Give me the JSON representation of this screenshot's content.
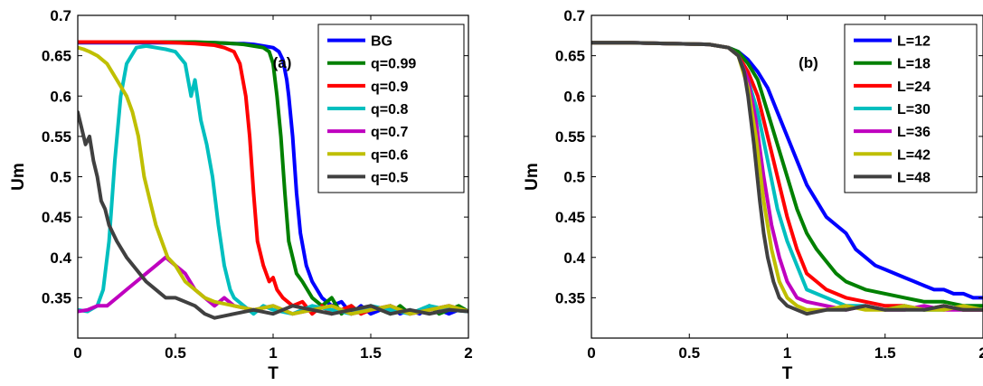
{
  "chart_data": [
    {
      "type": "line",
      "panel_label": "(a)",
      "xlabel": "T",
      "ylabel": "Um",
      "xlim": [
        0,
        2
      ],
      "ylim": [
        0.3,
        0.7
      ],
      "xticks": [
        "0",
        "0.5",
        "1",
        "1.5",
        "2"
      ],
      "yticks": [
        "0.35",
        "0.4",
        "0.45",
        "0.5",
        "0.55",
        "0.6",
        "0.65",
        "0.7"
      ],
      "legend_position": "top-right",
      "grid": false,
      "series": [
        {
          "name": "BG",
          "color": "#0000ff",
          "x": [
            0.0,
            0.1,
            0.2,
            0.3,
            0.4,
            0.5,
            0.6,
            0.7,
            0.8,
            0.85,
            0.9,
            0.95,
            1.0,
            1.03,
            1.05,
            1.07,
            1.08,
            1.1,
            1.12,
            1.14,
            1.17,
            1.2,
            1.25,
            1.3,
            1.35,
            1.4,
            1.45,
            1.5,
            1.55,
            1.6,
            1.65,
            1.7,
            1.75,
            1.8,
            1.85,
            1.9,
            1.95,
            2.0
          ],
          "y": [
            0.666,
            0.666,
            0.666,
            0.666,
            0.666,
            0.666,
            0.666,
            0.666,
            0.665,
            0.665,
            0.664,
            0.662,
            0.66,
            0.655,
            0.645,
            0.62,
            0.6,
            0.55,
            0.48,
            0.43,
            0.39,
            0.37,
            0.35,
            0.34,
            0.345,
            0.33,
            0.34,
            0.33,
            0.335,
            0.34,
            0.33,
            0.335,
            0.33,
            0.34,
            0.335,
            0.33,
            0.335,
            0.333
          ]
        },
        {
          "name": "q=0.99",
          "color": "#008000",
          "x": [
            0.0,
            0.1,
            0.2,
            0.3,
            0.4,
            0.5,
            0.6,
            0.7,
            0.8,
            0.85,
            0.9,
            0.95,
            0.98,
            1.0,
            1.02,
            1.04,
            1.06,
            1.08,
            1.1,
            1.12,
            1.15,
            1.2,
            1.25,
            1.3,
            1.35,
            1.4,
            1.45,
            1.5,
            1.55,
            1.6,
            1.65,
            1.7,
            1.75,
            1.8,
            1.85,
            1.9,
            1.95,
            2.0
          ],
          "y": [
            0.667,
            0.667,
            0.667,
            0.667,
            0.667,
            0.667,
            0.667,
            0.666,
            0.665,
            0.664,
            0.662,
            0.66,
            0.655,
            0.64,
            0.6,
            0.55,
            0.48,
            0.42,
            0.4,
            0.38,
            0.37,
            0.35,
            0.34,
            0.35,
            0.33,
            0.34,
            0.33,
            0.34,
            0.335,
            0.33,
            0.34,
            0.33,
            0.335,
            0.34,
            0.33,
            0.335,
            0.34,
            0.333
          ]
        },
        {
          "name": "q=0.9",
          "color": "#ff0000",
          "x": [
            0.0,
            0.1,
            0.2,
            0.3,
            0.4,
            0.5,
            0.6,
            0.7,
            0.75,
            0.8,
            0.83,
            0.86,
            0.88,
            0.9,
            0.92,
            0.95,
            0.98,
            1.0,
            1.02,
            1.05,
            1.1,
            1.15,
            1.2,
            1.25,
            1.3,
            1.35,
            1.4,
            1.45,
            1.5,
            1.6,
            1.7,
            1.8,
            1.9,
            2.0
          ],
          "y": [
            0.667,
            0.667,
            0.667,
            0.667,
            0.667,
            0.666,
            0.665,
            0.663,
            0.66,
            0.655,
            0.64,
            0.6,
            0.55,
            0.48,
            0.42,
            0.39,
            0.37,
            0.375,
            0.36,
            0.35,
            0.34,
            0.345,
            0.33,
            0.34,
            0.33,
            0.335,
            0.34,
            0.33,
            0.335,
            0.34,
            0.33,
            0.335,
            0.34,
            0.333
          ]
        },
        {
          "name": "q=0.8",
          "color": "#00bfbf",
          "x": [
            0.0,
            0.05,
            0.1,
            0.13,
            0.16,
            0.19,
            0.22,
            0.25,
            0.3,
            0.35,
            0.4,
            0.45,
            0.5,
            0.55,
            0.58,
            0.6,
            0.63,
            0.66,
            0.69,
            0.72,
            0.75,
            0.78,
            0.8,
            0.85,
            0.9,
            0.95,
            1.0,
            1.1,
            1.2,
            1.3,
            1.4,
            1.5,
            1.6,
            1.7,
            1.8,
            1.9,
            2.0
          ],
          "y": [
            0.335,
            0.333,
            0.34,
            0.36,
            0.42,
            0.52,
            0.6,
            0.64,
            0.66,
            0.662,
            0.66,
            0.658,
            0.655,
            0.64,
            0.6,
            0.62,
            0.57,
            0.54,
            0.5,
            0.44,
            0.39,
            0.36,
            0.35,
            0.34,
            0.33,
            0.34,
            0.335,
            0.33,
            0.34,
            0.335,
            0.33,
            0.34,
            0.335,
            0.33,
            0.34,
            0.335,
            0.333
          ]
        },
        {
          "name": "q=0.7",
          "color": "#bf00bf",
          "x": [
            0.0,
            0.05,
            0.1,
            0.15,
            0.2,
            0.25,
            0.3,
            0.35,
            0.4,
            0.45,
            0.5,
            0.55,
            0.6,
            0.65,
            0.7,
            0.75,
            0.8,
            0.9,
            1.0,
            1.1,
            1.2,
            1.3,
            1.4,
            1.5,
            1.6,
            1.7,
            1.8,
            1.9,
            2.0
          ],
          "y": [
            0.333,
            0.335,
            0.34,
            0.34,
            0.35,
            0.36,
            0.37,
            0.38,
            0.39,
            0.4,
            0.39,
            0.38,
            0.36,
            0.35,
            0.34,
            0.35,
            0.34,
            0.335,
            0.34,
            0.33,
            0.335,
            0.34,
            0.33,
            0.335,
            0.34,
            0.33,
            0.335,
            0.34,
            0.333
          ]
        },
        {
          "name": "q=0.6",
          "color": "#bfbf00",
          "x": [
            0.0,
            0.03,
            0.06,
            0.1,
            0.15,
            0.2,
            0.25,
            0.28,
            0.31,
            0.34,
            0.37,
            0.4,
            0.43,
            0.46,
            0.5,
            0.55,
            0.6,
            0.65,
            0.7,
            0.8,
            0.9,
            1.0,
            1.1,
            1.2,
            1.3,
            1.4,
            1.5,
            1.6,
            1.7,
            1.8,
            1.9,
            2.0
          ],
          "y": [
            0.66,
            0.658,
            0.655,
            0.65,
            0.64,
            0.62,
            0.6,
            0.58,
            0.55,
            0.5,
            0.47,
            0.44,
            0.42,
            0.4,
            0.39,
            0.37,
            0.36,
            0.35,
            0.345,
            0.34,
            0.335,
            0.34,
            0.33,
            0.335,
            0.34,
            0.33,
            0.335,
            0.34,
            0.33,
            0.335,
            0.34,
            0.333
          ]
        },
        {
          "name": "q=0.5",
          "color": "#404040",
          "x": [
            0.0,
            0.02,
            0.04,
            0.06,
            0.08,
            0.1,
            0.12,
            0.14,
            0.16,
            0.18,
            0.2,
            0.25,
            0.3,
            0.35,
            0.4,
            0.45,
            0.5,
            0.55,
            0.6,
            0.65,
            0.7,
            0.8,
            0.9,
            1.0,
            1.1,
            1.2,
            1.3,
            1.4,
            1.5,
            1.6,
            1.7,
            1.8,
            1.9,
            2.0
          ],
          "y": [
            0.58,
            0.56,
            0.54,
            0.55,
            0.52,
            0.5,
            0.47,
            0.46,
            0.44,
            0.43,
            0.42,
            0.4,
            0.385,
            0.37,
            0.36,
            0.35,
            0.35,
            0.345,
            0.34,
            0.33,
            0.325,
            0.33,
            0.335,
            0.33,
            0.34,
            0.335,
            0.33,
            0.335,
            0.34,
            0.33,
            0.335,
            0.33,
            0.335,
            0.333
          ]
        }
      ]
    },
    {
      "type": "line",
      "panel_label": "(b)",
      "xlabel": "T",
      "ylabel": "Um",
      "xlim": [
        0,
        2
      ],
      "ylim": [
        0.3,
        0.7
      ],
      "xticks": [
        "0",
        "0.5",
        "1",
        "1.5",
        "2"
      ],
      "yticks": [
        "0.35",
        "0.4",
        "0.45",
        "0.5",
        "0.55",
        "0.6",
        "0.65",
        "0.7"
      ],
      "legend_position": "top-right",
      "grid": false,
      "series": [
        {
          "name": "L=12",
          "color": "#0000ff",
          "x": [
            0.0,
            0.2,
            0.4,
            0.6,
            0.7,
            0.75,
            0.8,
            0.85,
            0.9,
            0.95,
            1.0,
            1.05,
            1.1,
            1.15,
            1.2,
            1.25,
            1.3,
            1.35,
            1.4,
            1.45,
            1.5,
            1.55,
            1.6,
            1.65,
            1.7,
            1.75,
            1.8,
            1.85,
            1.9,
            1.95,
            2.0
          ],
          "y": [
            0.666,
            0.666,
            0.665,
            0.664,
            0.66,
            0.655,
            0.645,
            0.63,
            0.61,
            0.58,
            0.55,
            0.52,
            0.49,
            0.47,
            0.45,
            0.44,
            0.43,
            0.41,
            0.4,
            0.39,
            0.385,
            0.38,
            0.375,
            0.37,
            0.365,
            0.36,
            0.36,
            0.355,
            0.355,
            0.35,
            0.35
          ]
        },
        {
          "name": "L=18",
          "color": "#008000",
          "x": [
            0.0,
            0.2,
            0.4,
            0.6,
            0.7,
            0.75,
            0.8,
            0.85,
            0.9,
            0.95,
            1.0,
            1.05,
            1.1,
            1.15,
            1.2,
            1.25,
            1.3,
            1.4,
            1.5,
            1.6,
            1.7,
            1.8,
            1.9,
            2.0
          ],
          "y": [
            0.666,
            0.666,
            0.665,
            0.664,
            0.66,
            0.655,
            0.64,
            0.62,
            0.58,
            0.54,
            0.5,
            0.46,
            0.43,
            0.41,
            0.395,
            0.38,
            0.37,
            0.36,
            0.355,
            0.35,
            0.345,
            0.345,
            0.34,
            0.34
          ]
        },
        {
          "name": "L=24",
          "color": "#ff0000",
          "x": [
            0.0,
            0.2,
            0.4,
            0.6,
            0.7,
            0.75,
            0.8,
            0.85,
            0.9,
            0.95,
            1.0,
            1.05,
            1.1,
            1.15,
            1.2,
            1.3,
            1.4,
            1.5,
            1.6,
            1.7,
            1.8,
            1.9,
            2.0
          ],
          "y": [
            0.666,
            0.666,
            0.665,
            0.664,
            0.66,
            0.65,
            0.63,
            0.6,
            0.55,
            0.5,
            0.45,
            0.41,
            0.38,
            0.37,
            0.36,
            0.35,
            0.345,
            0.34,
            0.34,
            0.335,
            0.34,
            0.335,
            0.335
          ]
        },
        {
          "name": "L=30",
          "color": "#00bfbf",
          "x": [
            0.0,
            0.2,
            0.4,
            0.6,
            0.7,
            0.75,
            0.8,
            0.85,
            0.9,
            0.95,
            1.0,
            1.05,
            1.1,
            1.2,
            1.3,
            1.4,
            1.5,
            1.6,
            1.7,
            1.8,
            1.9,
            2.0
          ],
          "y": [
            0.666,
            0.666,
            0.665,
            0.664,
            0.66,
            0.65,
            0.62,
            0.58,
            0.52,
            0.46,
            0.42,
            0.39,
            0.36,
            0.35,
            0.34,
            0.34,
            0.335,
            0.34,
            0.335,
            0.335,
            0.34,
            0.335
          ]
        },
        {
          "name": "L=36",
          "color": "#bf00bf",
          "x": [
            0.0,
            0.2,
            0.4,
            0.6,
            0.7,
            0.75,
            0.8,
            0.84,
            0.88,
            0.92,
            0.96,
            1.0,
            1.05,
            1.1,
            1.2,
            1.3,
            1.4,
            1.5,
            1.6,
            1.7,
            1.8,
            1.9,
            2.0
          ],
          "y": [
            0.666,
            0.666,
            0.665,
            0.664,
            0.66,
            0.65,
            0.62,
            0.57,
            0.5,
            0.44,
            0.4,
            0.37,
            0.35,
            0.345,
            0.34,
            0.335,
            0.34,
            0.335,
            0.335,
            0.34,
            0.335,
            0.335,
            0.335
          ]
        },
        {
          "name": "L=42",
          "color": "#bfbf00",
          "x": [
            0.0,
            0.2,
            0.4,
            0.6,
            0.7,
            0.75,
            0.8,
            0.84,
            0.88,
            0.92,
            0.96,
            1.0,
            1.05,
            1.1,
            1.2,
            1.3,
            1.4,
            1.5,
            1.6,
            1.7,
            1.8,
            1.9,
            2.0
          ],
          "y": [
            0.666,
            0.666,
            0.665,
            0.664,
            0.66,
            0.65,
            0.61,
            0.55,
            0.47,
            0.41,
            0.37,
            0.35,
            0.34,
            0.335,
            0.335,
            0.34,
            0.335,
            0.335,
            0.34,
            0.335,
            0.335,
            0.34,
            0.335
          ]
        },
        {
          "name": "L=48",
          "color": "#404040",
          "x": [
            0.0,
            0.2,
            0.4,
            0.6,
            0.7,
            0.75,
            0.78,
            0.8,
            0.83,
            0.86,
            0.88,
            0.9,
            0.93,
            0.96,
            1.0,
            1.05,
            1.1,
            1.2,
            1.3,
            1.4,
            1.5,
            1.6,
            1.7,
            1.8,
            1.9,
            2.0
          ],
          "y": [
            0.666,
            0.666,
            0.665,
            0.664,
            0.66,
            0.65,
            0.63,
            0.6,
            0.54,
            0.47,
            0.43,
            0.4,
            0.37,
            0.35,
            0.34,
            0.335,
            0.33,
            0.335,
            0.335,
            0.34,
            0.335,
            0.335,
            0.335,
            0.34,
            0.335,
            0.335
          ]
        }
      ]
    }
  ]
}
